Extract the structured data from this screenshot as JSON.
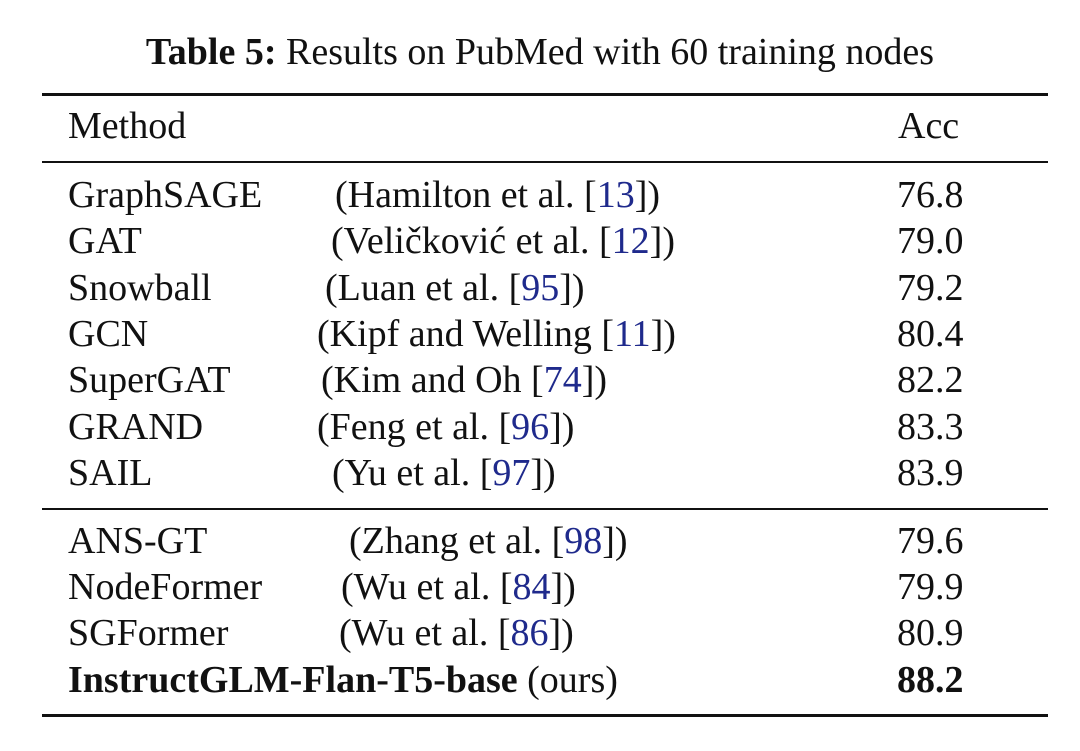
{
  "caption": {
    "label": "Table 5:",
    "text": "Results on PubMed with 60 training nodes"
  },
  "table": {
    "headers": {
      "method": "Method",
      "acc": "Acc"
    },
    "groups": [
      [
        {
          "method": "GraphSAGE",
          "ref_pre": "(Hamilton et al. [",
          "cite": "13",
          "ref_post": "])",
          "acc": "76.8"
        },
        {
          "method": "GAT",
          "ref_pre": "(Veličković et al. [",
          "cite": "12",
          "ref_post": "])",
          "acc": "79.0"
        },
        {
          "method": "Snowball",
          "ref_pre": "(Luan et al. [",
          "cite": "95",
          "ref_post": "])",
          "acc": "79.2"
        },
        {
          "method": "GCN",
          "ref_pre": "(Kipf and Welling [",
          "cite": "11",
          "ref_post": "])",
          "acc": "80.4"
        },
        {
          "method": "SuperGAT",
          "ref_pre": "(Kim and Oh [",
          "cite": "74",
          "ref_post": "])",
          "acc": "82.2"
        },
        {
          "method": "GRAND",
          "ref_pre": "(Feng et al. [",
          "cite": "96",
          "ref_post": "])",
          "acc": "83.3"
        },
        {
          "method": "SAIL",
          "ref_pre": "(Yu et al. [",
          "cite": "97",
          "ref_post": "])",
          "acc": "83.9"
        }
      ],
      [
        {
          "method": "ANS-GT",
          "ref_pre": "(Zhang et al. [",
          "cite": "98",
          "ref_post": "])",
          "acc": "79.6"
        },
        {
          "method": "NodeFormer",
          "ref_pre": "(Wu et al. [",
          "cite": "84",
          "ref_post": "])",
          "acc": "79.9"
        },
        {
          "method": "SGFormer",
          "ref_pre": "(Wu et al. [",
          "cite": "86",
          "ref_post": "])",
          "acc": "80.9"
        }
      ]
    ],
    "ours": {
      "method": "InstructGLM-Flan-T5-base",
      "note": " (ours)",
      "acc": "88.2"
    }
  }
}
